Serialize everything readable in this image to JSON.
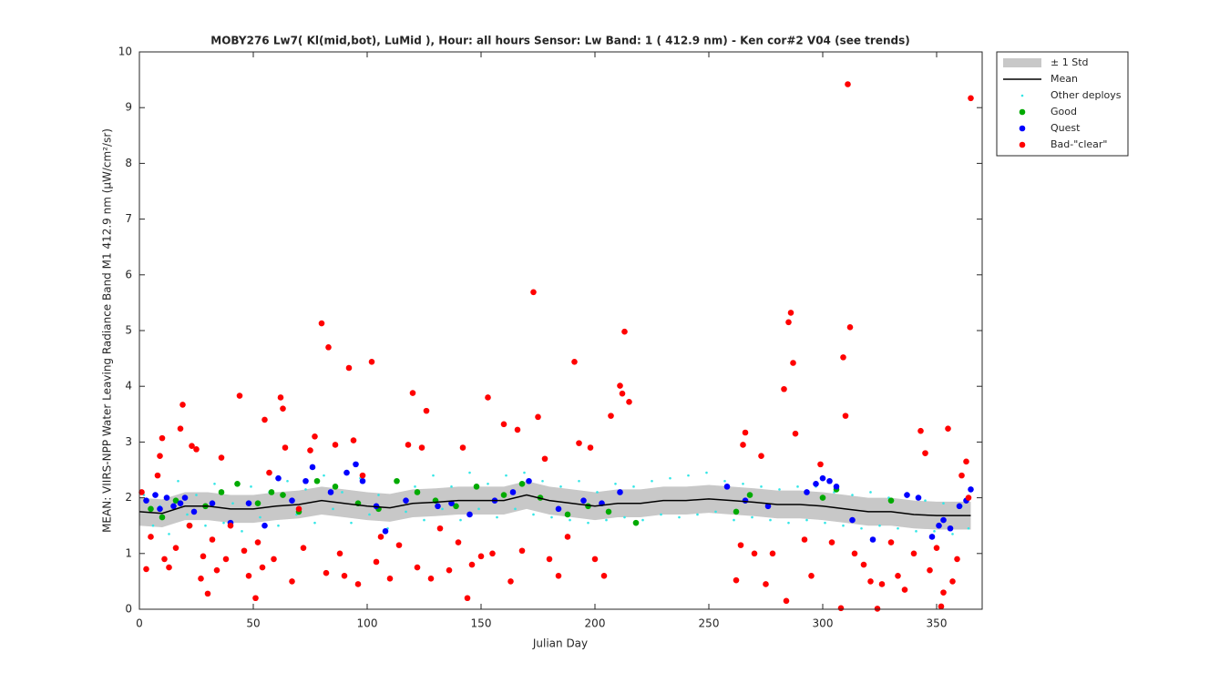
{
  "chart_data": {
    "type": "scatter",
    "title": "MOBY276   Lw7( Kl(mid,bot), LuMid ),   Hour: all hours  Sensor: Lw Band: 1 ( 412.9 nm)  - Ken cor#2 V04 (see trends)",
    "xlabel": "Julian Day",
    "ylabel": "MEAN: VIIRS-NPP Water Leaving Radiance Band M1 412.9 nm (µW/cm²/sr)",
    "xlim": [
      0,
      370
    ],
    "ylim": [
      0,
      10
    ],
    "xticks": [
      0,
      50,
      100,
      150,
      200,
      250,
      300,
      350
    ],
    "yticks": [
      0,
      1,
      2,
      3,
      4,
      5,
      6,
      7,
      8,
      9,
      10
    ],
    "legend": "outside-right",
    "series": [
      {
        "name": "± 1 Std",
        "style": "band",
        "color": "#c8c8c8",
        "x": [
          0,
          10,
          20,
          30,
          40,
          50,
          60,
          70,
          80,
          90,
          100,
          110,
          120,
          130,
          140,
          150,
          160,
          170,
          180,
          190,
          200,
          210,
          220,
          230,
          240,
          250,
          260,
          270,
          280,
          290,
          300,
          310,
          320,
          330,
          340,
          350,
          360,
          365
        ],
        "lower": [
          1.5,
          1.47,
          1.6,
          1.6,
          1.55,
          1.55,
          1.6,
          1.63,
          1.7,
          1.65,
          1.6,
          1.57,
          1.65,
          1.67,
          1.7,
          1.7,
          1.7,
          1.8,
          1.7,
          1.65,
          1.6,
          1.65,
          1.65,
          1.7,
          1.7,
          1.73,
          1.7,
          1.67,
          1.63,
          1.63,
          1.6,
          1.55,
          1.5,
          1.5,
          1.45,
          1.43,
          1.43,
          1.43
        ],
        "upper": [
          2.0,
          1.97,
          2.1,
          2.1,
          2.05,
          2.05,
          2.1,
          2.13,
          2.2,
          2.15,
          2.1,
          2.07,
          2.15,
          2.17,
          2.2,
          2.2,
          2.2,
          2.3,
          2.2,
          2.15,
          2.1,
          2.15,
          2.15,
          2.2,
          2.2,
          2.23,
          2.2,
          2.17,
          2.13,
          2.13,
          2.1,
          2.05,
          2.0,
          2.0,
          1.95,
          1.93,
          1.93,
          1.93
        ]
      },
      {
        "name": "Mean",
        "style": "line",
        "color": "#000000",
        "x": [
          0,
          10,
          20,
          30,
          40,
          50,
          60,
          70,
          80,
          90,
          100,
          110,
          120,
          130,
          140,
          150,
          160,
          170,
          180,
          190,
          200,
          210,
          220,
          230,
          240,
          250,
          260,
          270,
          280,
          290,
          300,
          310,
          320,
          330,
          340,
          350,
          360,
          365
        ],
        "values": [
          1.75,
          1.72,
          1.85,
          1.85,
          1.8,
          1.8,
          1.85,
          1.88,
          1.95,
          1.9,
          1.85,
          1.82,
          1.9,
          1.92,
          1.95,
          1.95,
          1.95,
          2.05,
          1.95,
          1.9,
          1.85,
          1.9,
          1.9,
          1.95,
          1.95,
          1.98,
          1.95,
          1.92,
          1.88,
          1.88,
          1.85,
          1.8,
          1.75,
          1.75,
          1.7,
          1.68,
          1.68,
          1.68
        ]
      },
      {
        "name": "Other deploys",
        "style": "dots",
        "color": "#33e6e6",
        "x": [
          2,
          6,
          9,
          13,
          17,
          21,
          25,
          29,
          33,
          37,
          41,
          45,
          49,
          53,
          57,
          61,
          65,
          69,
          73,
          77,
          81,
          85,
          89,
          93,
          97,
          101,
          105,
          109,
          113,
          117,
          121,
          125,
          129,
          133,
          137,
          141,
          145,
          149,
          153,
          157,
          161,
          165,
          169,
          173,
          177,
          181,
          185,
          189,
          193,
          197,
          201,
          205,
          209,
          213,
          217,
          221,
          225,
          229,
          233,
          237,
          241,
          245,
          249,
          253,
          257,
          261,
          265,
          269,
          273,
          277,
          281,
          285,
          289,
          293,
          297,
          301,
          305,
          309,
          313,
          317,
          321,
          325,
          329,
          333,
          337,
          341,
          345,
          349,
          353,
          357,
          361,
          364
        ],
        "values": [
          2.05,
          1.5,
          1.85,
          1.35,
          2.3,
          1.7,
          2.05,
          1.5,
          2.25,
          1.55,
          1.9,
          1.4,
          2.2,
          1.65,
          2.1,
          1.5,
          2.3,
          1.7,
          2.15,
          1.55,
          2.4,
          1.8,
          2.1,
          1.55,
          2.35,
          1.7,
          2.05,
          1.45,
          2.3,
          1.75,
          2.2,
          1.6,
          2.4,
          1.8,
          2.2,
          1.6,
          2.45,
          1.8,
          2.25,
          1.65,
          2.4,
          1.8,
          2.45,
          1.7,
          2.3,
          1.65,
          2.2,
          1.6,
          2.3,
          1.55,
          2.1,
          1.6,
          2.25,
          1.65,
          2.2,
          1.6,
          2.3,
          1.7,
          2.35,
          1.65,
          2.4,
          1.7,
          2.45,
          1.75,
          2.3,
          1.6,
          2.25,
          1.65,
          2.2,
          1.6,
          2.15,
          1.55,
          2.2,
          1.6,
          2.2,
          1.55,
          2.1,
          1.5,
          2.05,
          1.45,
          2.1,
          1.5,
          2.0,
          1.45,
          2.05,
          1.4,
          1.95,
          1.4,
          1.9,
          1.35,
          1.85,
          1.45
        ]
      },
      {
        "name": "Good",
        "style": "markers",
        "color": "#00aa00",
        "x": [
          5,
          10,
          16,
          22,
          29,
          36,
          43,
          52,
          58,
          63,
          70,
          78,
          86,
          96,
          105,
          113,
          122,
          130,
          139,
          148,
          160,
          168,
          176,
          188,
          197,
          206,
          218,
          262,
          268,
          300,
          306,
          330
        ],
        "values": [
          1.8,
          1.65,
          1.95,
          1.5,
          1.85,
          2.1,
          2.25,
          1.9,
          2.1,
          2.05,
          1.75,
          2.3,
          2.2,
          1.9,
          1.8,
          2.3,
          2.1,
          1.95,
          1.85,
          2.2,
          2.05,
          2.25,
          2.0,
          1.7,
          1.85,
          1.75,
          1.55,
          1.75,
          2.05,
          2.0,
          2.15,
          1.95
        ]
      },
      {
        "name": "Quest",
        "style": "markers",
        "color": "#0000ff",
        "x": [
          3,
          7,
          9,
          12,
          15,
          18,
          20,
          24,
          32,
          40,
          48,
          55,
          61,
          67,
          73,
          76,
          84,
          91,
          95,
          98,
          104,
          108,
          117,
          131,
          137,
          145,
          156,
          164,
          171,
          184,
          195,
          203,
          211,
          266,
          258,
          276,
          293,
          297,
          300,
          303,
          306,
          313,
          322,
          337,
          342,
          348,
          351,
          353,
          356,
          360,
          363,
          365
        ],
        "values": [
          1.95,
          2.05,
          1.8,
          2.0,
          1.85,
          1.9,
          2.0,
          1.75,
          1.9,
          1.55,
          1.9,
          1.5,
          2.35,
          1.95,
          2.3,
          2.55,
          2.1,
          2.45,
          2.6,
          2.3,
          1.85,
          1.4,
          1.95,
          1.85,
          1.9,
          1.7,
          1.95,
          2.1,
          2.3,
          1.8,
          1.95,
          1.9,
          2.1,
          1.95,
          2.2,
          1.85,
          2.1,
          2.25,
          2.35,
          2.3,
          2.2,
          1.6,
          1.25,
          2.05,
          2.0,
          1.3,
          1.5,
          1.6,
          1.45,
          1.85,
          1.95,
          2.15
        ]
      },
      {
        "name": "Bad-\"clear\"",
        "style": "markers",
        "color": "#ff0000",
        "x": [
          1,
          3,
          5,
          8,
          9,
          10,
          11,
          13,
          16,
          18,
          19,
          22,
          23,
          25,
          27,
          28,
          30,
          32,
          34,
          36,
          38,
          40,
          44,
          46,
          48,
          51,
          52,
          54,
          55,
          57,
          59,
          62,
          63,
          64,
          67,
          70,
          72,
          75,
          77,
          80,
          82,
          83,
          86,
          88,
          90,
          92,
          94,
          96,
          98,
          102,
          104,
          106,
          110,
          114,
          118,
          120,
          122,
          124,
          126,
          128,
          132,
          136,
          140,
          142,
          144,
          146,
          150,
          153,
          155,
          160,
          163,
          166,
          168,
          173,
          175,
          178,
          180,
          184,
          188,
          191,
          193,
          198,
          200,
          204,
          207,
          211,
          212,
          213,
          215,
          262,
          264,
          265,
          266,
          270,
          273,
          275,
          278,
          283,
          284,
          285,
          286,
          287,
          288,
          292,
          295,
          299,
          304,
          308,
          309,
          310,
          311,
          312,
          314,
          318,
          321,
          324,
          326,
          330,
          333,
          336,
          340,
          343,
          345,
          347,
          350,
          352,
          353,
          355,
          357,
          359,
          361,
          363,
          364,
          365
        ],
        "values": [
          2.1,
          0.72,
          1.3,
          2.4,
          2.75,
          3.07,
          0.9,
          0.75,
          1.1,
          3.24,
          3.67,
          1.5,
          2.93,
          2.87,
          0.55,
          0.95,
          0.28,
          1.25,
          0.7,
          2.72,
          0.9,
          1.5,
          3.83,
          1.05,
          0.6,
          0.2,
          1.2,
          0.75,
          3.4,
          2.45,
          0.9,
          3.8,
          3.6,
          2.9,
          0.5,
          1.8,
          1.1,
          2.85,
          3.1,
          5.13,
          0.65,
          4.7,
          2.95,
          1.0,
          0.6,
          4.33,
          3.03,
          0.45,
          2.4,
          4.44,
          0.85,
          1.3,
          0.55,
          1.15,
          2.95,
          3.88,
          0.75,
          2.9,
          3.56,
          0.55,
          1.45,
          0.7,
          1.2,
          2.9,
          0.2,
          0.8,
          0.95,
          3.8,
          1.0,
          3.32,
          0.5,
          3.22,
          1.05,
          5.69,
          3.45,
          2.7,
          0.9,
          0.6,
          1.3,
          4.44,
          2.98,
          2.9,
          0.9,
          0.6,
          3.47,
          4.01,
          3.87,
          4.98,
          3.72,
          0.52,
          1.15,
          2.95,
          3.17,
          1.0,
          2.75,
          0.45,
          1.0,
          3.95,
          0.15,
          5.15,
          5.32,
          4.42,
          3.15,
          1.25,
          0.6,
          2.6,
          1.2,
          0.02,
          4.52,
          3.47,
          9.42,
          5.06,
          1.0,
          0.8,
          0.5,
          0.01,
          0.45,
          1.2,
          0.6,
          0.35,
          1.0,
          3.2,
          2.8,
          0.7,
          1.1,
          0.05,
          0.3,
          3.24,
          0.5,
          0.9,
          2.4,
          2.65,
          2.0,
          9.17
        ]
      }
    ]
  }
}
